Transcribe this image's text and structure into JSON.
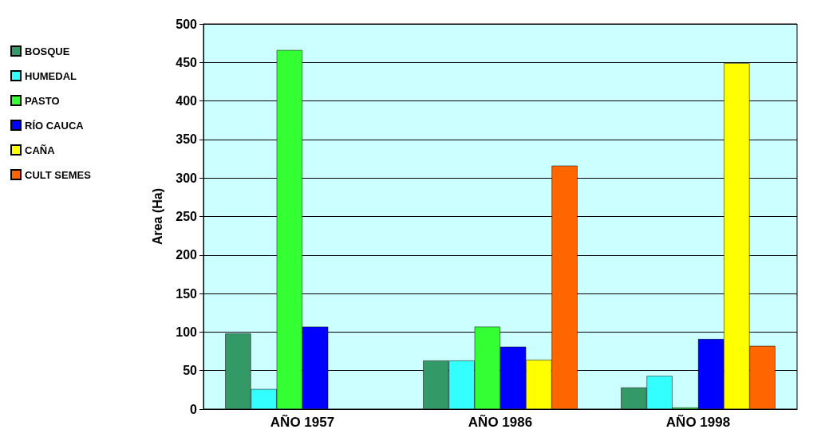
{
  "chart_data": {
    "type": "bar",
    "ylabel": "Area (Ha)",
    "categories": [
      "AÑO 1957",
      "AÑO 1986",
      "AÑO 1998"
    ],
    "series": [
      {
        "name": "BOSQUE",
        "color": "#339966",
        "values": [
          98,
          63,
          28
        ]
      },
      {
        "name": "HUMEDAL",
        "color": "#33ffff",
        "values": [
          26,
          63,
          43
        ]
      },
      {
        "name": "PASTO",
        "color": "#33ff33",
        "values": [
          466,
          107,
          2
        ]
      },
      {
        "name": "RÍO CAUCA",
        "color": "#0000ff",
        "values": [
          107,
          81,
          91
        ]
      },
      {
        "name": "CAÑA",
        "color": "#ffff00",
        "values": [
          null,
          64,
          449
        ]
      },
      {
        "name": "CULT SEMES",
        "color": "#ff6600",
        "values": [
          null,
          316,
          82
        ]
      }
    ],
    "ylim": [
      0,
      500
    ],
    "yticks": [
      0,
      50,
      100,
      150,
      200,
      250,
      300,
      350,
      400,
      450,
      500
    ],
    "grid": "y",
    "legend": "top left"
  }
}
